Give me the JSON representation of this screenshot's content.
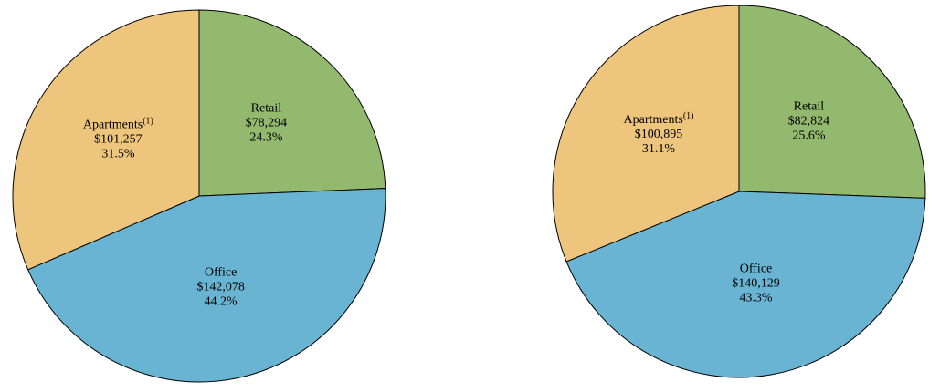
{
  "chart_data": [
    {
      "type": "pie",
      "slices": [
        {
          "label": "Retail",
          "sup": "",
          "amount": "$78,294",
          "percent": "24.3%",
          "value": 78294,
          "color": "#93b96e"
        },
        {
          "label": "Office",
          "sup": "",
          "amount": "$142,078",
          "percent": "44.2%",
          "value": 142078,
          "color": "#69b4d2"
        },
        {
          "label": "Apartments",
          "sup": "(1)",
          "amount": "$101,257",
          "percent": "31.5%",
          "value": 101257,
          "color": "#eec57c"
        }
      ]
    },
    {
      "type": "pie",
      "slices": [
        {
          "label": "Retail",
          "sup": "",
          "amount": "$82,824",
          "percent": "25.6%",
          "value": 82824,
          "color": "#93b96e"
        },
        {
          "label": "Office",
          "sup": "",
          "amount": "$140,129",
          "percent": "43.3%",
          "value": 140129,
          "color": "#69b4d2"
        },
        {
          "label": "Apartments",
          "sup": "(1)",
          "amount": "$100,895",
          "percent": "31.1%",
          "value": 100895,
          "color": "#eec57c"
        }
      ]
    }
  ]
}
